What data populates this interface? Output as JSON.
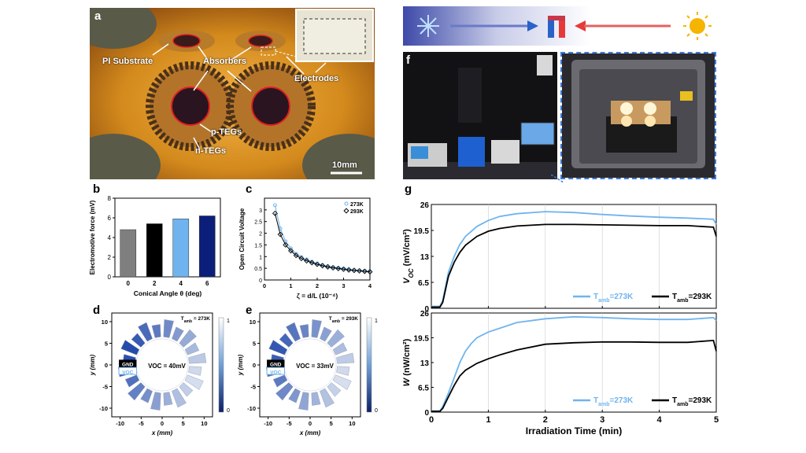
{
  "panels": {
    "a": {
      "letter": "a",
      "labels": {
        "pi_substrate": "PI Substrate",
        "absorbers": "Absorbers",
        "electrodes": "Electrodes",
        "p_tegs": "p-TEGs",
        "n_tegs": "n-TEGs",
        "scale": "10mm"
      }
    },
    "f": {
      "letter": "f"
    },
    "top_banner": {
      "cold_icon": "snowflake-icon",
      "hot_icon": "sun-icon",
      "cold_color": "#2a62c8",
      "hot_color": "#e63a3a",
      "sun_color": "#f5b400"
    },
    "d": {
      "letter": "d",
      "tamb": "T",
      "tamb_sub": "amb",
      "tamb_val": " = 273K",
      "gnd": "GND",
      "voc": "VOC",
      "voc_text": "VOC = 40mV",
      "xlabel": "x (mm)",
      "ylabel": "y (mm)",
      "cbar_max": "1",
      "cbar_min": "0",
      "xticks": [
        "-10",
        "-5",
        "0",
        "5",
        "10"
      ],
      "yticks": [
        "10",
        "5",
        "0",
        "-5",
        "-10"
      ]
    },
    "e": {
      "letter": "e",
      "tamb": "T",
      "tamb_sub": "amb",
      "tamb_val": " = 293K",
      "gnd": "GND",
      "voc": "VOC",
      "voc_text": "VOC = 33mV",
      "xlabel": "x (mm)",
      "ylabel": "y (mm)",
      "cbar_max": "1",
      "cbar_min": "0",
      "xticks": [
        "-10",
        "-5",
        "0",
        "5",
        "10"
      ],
      "yticks": [
        "10",
        "5",
        "0",
        "-5",
        "-10"
      ]
    }
  },
  "chart_data": [
    {
      "id": "b",
      "letter": "b",
      "type": "bar",
      "categories": [
        "0",
        "2",
        "4",
        "6"
      ],
      "values": [
        4.8,
        5.4,
        5.9,
        6.2
      ],
      "colors": [
        "#7f7f7f",
        "#000000",
        "#6fb4ee",
        "#0b1f7a"
      ],
      "xlabel": "Conical Angle θ (deg)",
      "ylabel": "Electromotive force (mV)",
      "ylim": [
        0,
        8
      ],
      "yticks": [
        0,
        2,
        4,
        6,
        8
      ]
    },
    {
      "id": "c",
      "letter": "c",
      "type": "line",
      "xlabel": "ζ = d/L (10⁻⁴)",
      "ylabel": "Open Circuit Voltage",
      "xlim": [
        0,
        4
      ],
      "ylim": [
        0,
        3.5
      ],
      "xticks": [
        0,
        1,
        2,
        3,
        4
      ],
      "yticks": [
        0,
        0.5,
        1,
        1.5,
        2,
        2.5,
        3
      ],
      "legend": "top-right",
      "series": [
        {
          "name": "273K",
          "color": "#6fb4ee",
          "x": [
            0.4,
            0.6,
            0.8,
            1.0,
            1.2,
            1.4,
            1.6,
            1.8,
            2.0,
            2.2,
            2.4,
            2.6,
            2.8,
            3.0,
            3.2,
            3.4,
            3.6,
            3.8,
            4.0
          ],
          "y": [
            3.2,
            2.2,
            1.65,
            1.35,
            1.12,
            0.98,
            0.88,
            0.78,
            0.7,
            0.64,
            0.59,
            0.55,
            0.52,
            0.49,
            0.46,
            0.43,
            0.41,
            0.39,
            0.37
          ]
        },
        {
          "name": "293K",
          "color": "#000000",
          "x": [
            0.4,
            0.6,
            0.8,
            1.0,
            1.2,
            1.4,
            1.6,
            1.8,
            2.0,
            2.2,
            2.4,
            2.6,
            2.8,
            3.0,
            3.2,
            3.4,
            3.6,
            3.8,
            4.0
          ],
          "y": [
            2.85,
            1.95,
            1.5,
            1.25,
            1.05,
            0.92,
            0.82,
            0.74,
            0.67,
            0.61,
            0.56,
            0.52,
            0.49,
            0.46,
            0.43,
            0.41,
            0.39,
            0.37,
            0.35
          ]
        }
      ]
    },
    {
      "id": "g_top",
      "letter": "g",
      "type": "line",
      "ylabel_main": "V",
      "ylabel_sub": "OC",
      "ylabel_unit": " (mV/cm²)",
      "xlim": [
        0,
        5
      ],
      "ylim": [
        0,
        26
      ],
      "yticks": [
        0,
        6.5,
        13,
        19.5,
        26
      ],
      "xticks": [
        0,
        1,
        2,
        3,
        4,
        5
      ],
      "series": [
        {
          "name_main": "T",
          "name_sub": "amb",
          "name_val": "=273K",
          "color": "#6fb4ee",
          "x": [
            0,
            0.15,
            0.2,
            0.3,
            0.4,
            0.5,
            0.6,
            0.8,
            1.0,
            1.2,
            1.5,
            2.0,
            2.5,
            3.0,
            3.5,
            4.0,
            4.5,
            4.95,
            5.0
          ],
          "y": [
            0.5,
            0.5,
            2,
            9,
            13,
            16,
            18,
            20.5,
            22,
            23,
            23.7,
            24.2,
            24,
            23.5,
            23.1,
            22.8,
            22.6,
            22.3,
            21
          ]
        },
        {
          "name_main": "T",
          "name_sub": "amb",
          "name_val": "=293K",
          "color": "#000000",
          "x": [
            0,
            0.15,
            0.2,
            0.3,
            0.4,
            0.5,
            0.6,
            0.8,
            1.0,
            1.2,
            1.5,
            2.0,
            2.5,
            3.0,
            3.5,
            4.0,
            4.5,
            4.95,
            5.0
          ],
          "y": [
            0.3,
            0.3,
            1.5,
            8,
            11.5,
            14,
            15.8,
            18,
            19.3,
            20,
            20.6,
            21,
            21,
            20.9,
            20.8,
            20.7,
            20.7,
            20.3,
            18
          ]
        }
      ]
    },
    {
      "id": "g_bottom",
      "type": "line",
      "xlabel": "Irradiation Time (min)",
      "ylabel_main": "W",
      "ylabel_sub": "",
      "ylabel_unit": " (nW/cm²)",
      "xlim": [
        0,
        5
      ],
      "ylim": [
        0,
        26
      ],
      "yticks": [
        0,
        6.5,
        13,
        19.5,
        26
      ],
      "xticks": [
        0,
        1,
        2,
        3,
        4,
        5
      ],
      "series": [
        {
          "name_main": "T",
          "name_sub": "amb",
          "name_val": "=273K",
          "color": "#6fb4ee",
          "x": [
            0,
            0.15,
            0.2,
            0.3,
            0.4,
            0.5,
            0.6,
            0.7,
            0.8,
            1.0,
            1.2,
            1.5,
            2.0,
            2.5,
            3.0,
            3.5,
            4.0,
            4.5,
            4.95,
            5.0
          ],
          "y": [
            0.3,
            0.3,
            1.5,
            5,
            9,
            13,
            16,
            18,
            19.5,
            21,
            22,
            23.5,
            24.5,
            25,
            24.8,
            24.5,
            24.3,
            24.3,
            24.8,
            24
          ]
        },
        {
          "name_main": "T",
          "name_sub": "amb",
          "name_val": "=293K",
          "color": "#000000",
          "x": [
            0,
            0.15,
            0.2,
            0.3,
            0.4,
            0.5,
            0.6,
            0.8,
            1.0,
            1.2,
            1.5,
            2.0,
            2.5,
            3.0,
            3.5,
            4.0,
            4.5,
            4.95,
            5.0
          ],
          "y": [
            0.2,
            0.2,
            1,
            4,
            7,
            9.5,
            11,
            12.8,
            14,
            15,
            16.3,
            17.8,
            18.2,
            18.4,
            18.4,
            18.3,
            18.3,
            18.8,
            16
          ]
        }
      ]
    }
  ]
}
